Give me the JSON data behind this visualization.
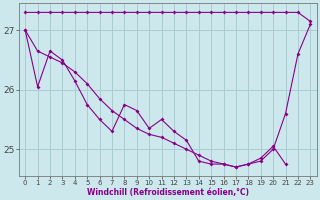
{
  "xlabel": "Windchill (Refroidissement éolien,°C)",
  "bg_color": "#cce8ec",
  "grid_color": "#aaccd0",
  "line_color": "#880088",
  "xlim": [
    -0.5,
    23.5
  ],
  "ylim": [
    24.55,
    27.45
  ],
  "yticks": [
    25,
    26,
    27
  ],
  "xticks": [
    0,
    1,
    2,
    3,
    4,
    5,
    6,
    7,
    8,
    9,
    10,
    11,
    12,
    13,
    14,
    15,
    16,
    17,
    18,
    19,
    20,
    21,
    22,
    23
  ],
  "line1_x": [
    0,
    1,
    2,
    3,
    4,
    5,
    6,
    7,
    8,
    9,
    10,
    11,
    12,
    13,
    14,
    15,
    16,
    17,
    18,
    19,
    20,
    21,
    22,
    23
  ],
  "line1_y": [
    27.3,
    27.3,
    27.3,
    27.3,
    27.3,
    27.3,
    27.3,
    27.3,
    27.3,
    27.3,
    27.3,
    27.3,
    27.3,
    27.3,
    27.3,
    27.3,
    27.3,
    27.3,
    27.3,
    27.3,
    27.3,
    27.3,
    27.3,
    27.15
  ],
  "line2_x": [
    0,
    1,
    2,
    3,
    4,
    5,
    6,
    7,
    8,
    9,
    10,
    11,
    12,
    13,
    14,
    15,
    16,
    17,
    18,
    19,
    20,
    21,
    22,
    23
  ],
  "line2_y": [
    27.0,
    26.65,
    26.55,
    26.45,
    26.3,
    26.1,
    25.85,
    25.65,
    25.5,
    25.35,
    25.25,
    25.2,
    25.1,
    25.0,
    24.9,
    24.8,
    24.75,
    24.7,
    24.75,
    24.8,
    25.0,
    25.6,
    26.6,
    27.1
  ],
  "line3_x": [
    0,
    1,
    2,
    3,
    4,
    5,
    6,
    7,
    8,
    9,
    10,
    11,
    12,
    13,
    14,
    15,
    16,
    17,
    18,
    19,
    20,
    21
  ],
  "line3_y": [
    27.0,
    26.05,
    26.65,
    26.5,
    26.15,
    25.75,
    25.5,
    25.3,
    25.75,
    25.65,
    25.35,
    25.5,
    25.3,
    25.15,
    24.8,
    24.75,
    24.75,
    24.7,
    24.75,
    24.85,
    25.05,
    24.75
  ]
}
